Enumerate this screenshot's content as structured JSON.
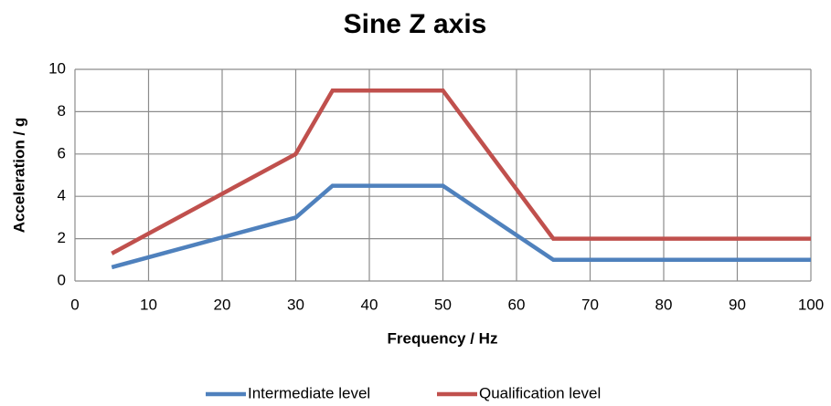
{
  "chart_data": {
    "type": "line",
    "title": "Sine Z axis",
    "x_label": "Frequency / Hz",
    "y_label": "Acceleration  / g",
    "x": [
      5,
      30,
      35,
      50,
      65,
      100
    ],
    "series": [
      {
        "name": "Intermediate level",
        "color": "#4f81bd",
        "values": [
          0.65,
          3,
          4.5,
          4.5,
          1,
          1
        ]
      },
      {
        "name": "Qualification level",
        "color": "#c0504d",
        "values": [
          1.3,
          6,
          9,
          9,
          2,
          2
        ]
      }
    ],
    "xlim": [
      0,
      100
    ],
    "xticks": [
      0,
      10,
      20,
      30,
      40,
      50,
      60,
      70,
      80,
      90,
      100
    ],
    "ylim": [
      0,
      10
    ],
    "yticks": [
      0,
      2,
      4,
      6,
      8,
      10
    ],
    "grid": true,
    "legend": "bottom"
  }
}
